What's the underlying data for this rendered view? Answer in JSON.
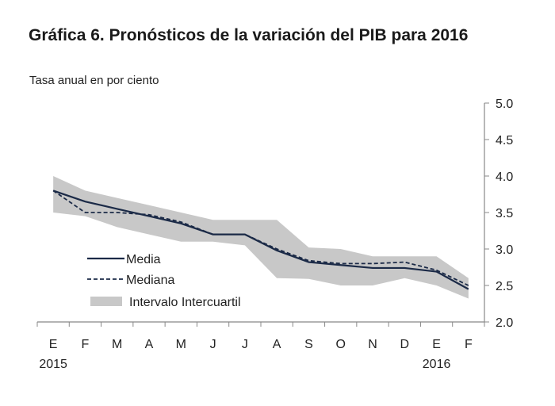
{
  "chart_data": {
    "type": "line",
    "title": "Gráfica 6. Pronósticos de la variación del PIB para 2016",
    "subtitle": "Tasa anual en por ciento",
    "categories": [
      "E",
      "F",
      "M",
      "A",
      "M",
      "J",
      "J",
      "A",
      "S",
      "O",
      "N",
      "D",
      "E",
      "F"
    ],
    "year_labels": [
      {
        "index": 0,
        "label": "2015"
      },
      {
        "index": 12,
        "label": "2016"
      }
    ],
    "ylim": [
      2.0,
      5.0
    ],
    "yticks": [
      "5.0",
      "4.5",
      "4.0",
      "3.5",
      "3.0",
      "2.5",
      "2.0"
    ],
    "ytick_values": [
      5.0,
      4.5,
      4.0,
      3.5,
      3.0,
      2.5,
      2.0
    ],
    "y_axis_side": "right",
    "grid": false,
    "legend_placement": "bottom-left",
    "series": [
      {
        "name": "Media",
        "style": "solid",
        "color": "#1b2a47",
        "values": [
          3.8,
          3.65,
          3.55,
          3.45,
          3.35,
          3.2,
          3.2,
          2.98,
          2.82,
          2.78,
          2.74,
          2.74,
          2.69,
          2.45
        ]
      },
      {
        "name": "Mediana",
        "style": "dashed",
        "color": "#1b2a47",
        "values": [
          3.8,
          3.5,
          3.5,
          3.47,
          3.37,
          3.2,
          3.2,
          3.0,
          2.84,
          2.8,
          2.8,
          2.82,
          2.71,
          2.5
        ]
      }
    ],
    "band": {
      "name": "Intervalo Intercuartil",
      "color": "#c8c8c8",
      "upper": [
        4.0,
        3.8,
        3.7,
        3.6,
        3.5,
        3.4,
        3.4,
        3.4,
        3.02,
        3.0,
        2.9,
        2.9,
        2.9,
        2.6
      ],
      "lower": [
        3.5,
        3.45,
        3.3,
        3.2,
        3.1,
        3.1,
        3.05,
        2.6,
        2.59,
        2.5,
        2.5,
        2.6,
        2.5,
        2.32
      ]
    }
  }
}
